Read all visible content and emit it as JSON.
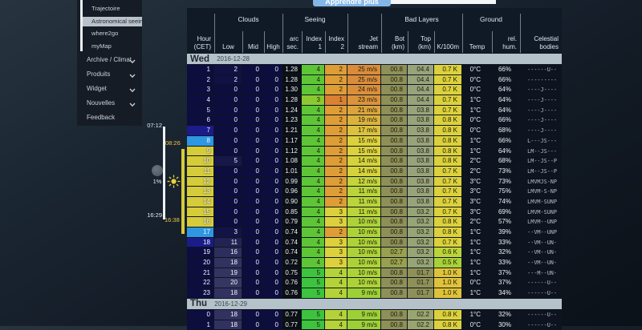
{
  "sidebar": {
    "submenu_items": [
      {
        "label": "Trajectoire",
        "active": false
      },
      {
        "label": "Astronomical seeing",
        "active": true
      },
      {
        "label": "where2go",
        "active": false
      },
      {
        "label": "myMap",
        "active": false
      }
    ],
    "menu_items": [
      {
        "label": "Archive / Climat",
        "chevron": true
      },
      {
        "label": "Produits",
        "chevron": true
      },
      {
        "label": "Widget",
        "chevron": true
      },
      {
        "label": "Nouvelles",
        "chevron": true
      },
      {
        "label": "Feedback",
        "chevron": false
      }
    ]
  },
  "timeline": {
    "moonrise": "07:12",
    "sunrise": "08:26",
    "moonset": "16:29",
    "sunset": "16:38",
    "moon_illumination": "1%"
  },
  "learn_more": "Apprendre plus",
  "table": {
    "column_groups": [
      {
        "label": "Clouds",
        "from": 1,
        "to": 3
      },
      {
        "label": "Seeing",
        "from": 4,
        "to": 6
      },
      {
        "label": "Bad Layers",
        "from": 8,
        "to": 10
      },
      {
        "label": "Ground",
        "from": 11,
        "to": 12
      }
    ],
    "columns": [
      {
        "lines": [
          "Hour",
          "(CET)"
        ]
      },
      {
        "lines": [
          "Low"
        ]
      },
      {
        "lines": [
          "Mid"
        ]
      },
      {
        "lines": [
          "High"
        ]
      },
      {
        "lines": [
          "arc",
          "sec."
        ]
      },
      {
        "lines": [
          "Index",
          "1"
        ]
      },
      {
        "lines": [
          "Index",
          "2"
        ]
      },
      {
        "lines": [
          "Jet",
          "stream"
        ]
      },
      {
        "lines": [
          "Bot",
          "(km)"
        ]
      },
      {
        "lines": [
          "Top",
          "(km)"
        ]
      },
      {
        "lines": [
          "K/100m"
        ]
      },
      {
        "lines": [
          "Temp"
        ]
      },
      {
        "lines": [
          "rel.",
          "hum."
        ]
      },
      {
        "lines": [
          "Celestial",
          "bodies"
        ]
      }
    ],
    "days": [
      {
        "name": "Wed",
        "date": "2016-12-28",
        "rows": [
          {
            "h": "1",
            "sky": "n",
            "c": [
              2,
              0,
              0
            ],
            "arc": "1.28",
            "i1": "4",
            "i2": "2",
            "jet": "25 m/s",
            "bot": "00.8",
            "top": "04.4",
            "k": "0.7 K",
            "t": "0°C",
            "rh": "66%",
            "cb": "------U--"
          },
          {
            "h": "2",
            "sky": "n",
            "c": [
              2,
              0,
              0
            ],
            "arc": "1.28",
            "i1": "4",
            "i2": "2",
            "jet": "25 m/s",
            "bot": "00.8",
            "top": "04.4",
            "k": "0.7 K",
            "t": "0°C",
            "rh": "66%",
            "cb": "---------"
          },
          {
            "h": "3",
            "sky": "n",
            "c": [
              0,
              0,
              0
            ],
            "arc": "1.30",
            "i1": "4",
            "i2": "2",
            "jet": "24 m/s",
            "bot": "00.8",
            "top": "04.4",
            "k": "0.7 K",
            "t": "0°C",
            "rh": "64%",
            "cb": "----J----"
          },
          {
            "h": "4",
            "sky": "n",
            "c": [
              0,
              0,
              0
            ],
            "arc": "1.28",
            "i1": "3",
            "i2": "1",
            "jet": "23 m/s",
            "bot": "00.8",
            "top": "04.4",
            "k": "0.7 K",
            "t": "1°C",
            "rh": "64%",
            "cb": "----J----"
          },
          {
            "h": "5",
            "sky": "n",
            "c": [
              0,
              0,
              0
            ],
            "arc": "1.24",
            "i1": "4",
            "i2": "2",
            "jet": "21 m/s",
            "bot": "00.8",
            "top": "03.8",
            "k": "0.7 K",
            "t": "1°C",
            "rh": "64%",
            "cb": "----J----"
          },
          {
            "h": "6",
            "sky": "n",
            "c": [
              0,
              0,
              0
            ],
            "arc": "1.23",
            "i1": "4",
            "i2": "2",
            "jet": "19 m/s",
            "bot": "00.8",
            "top": "03.8",
            "k": "0.8 K",
            "t": "0°C",
            "rh": "66%",
            "cb": "----J----"
          },
          {
            "h": "7",
            "sky": "t",
            "c": [
              0,
              0,
              0
            ],
            "arc": "1.21",
            "i1": "4",
            "i2": "2",
            "jet": "17 m/s",
            "bot": "00.8",
            "top": "03.8",
            "k": "0.8 K",
            "t": "0°C",
            "rh": "68%",
            "cb": "----J----"
          },
          {
            "h": "8",
            "sky": "s",
            "c": [
              0,
              0,
              0
            ],
            "arc": "1.17",
            "i1": "4",
            "i2": "2",
            "jet": "15 m/s",
            "bot": "00.8",
            "top": "03.8",
            "k": "0.8 K",
            "t": "1°C",
            "rh": "66%",
            "cb": "L---JS---"
          },
          {
            "h": "9",
            "sky": "d",
            "c": [
              0,
              0,
              0
            ],
            "arc": "1.12",
            "i1": "4",
            "i2": "2",
            "jet": "15 m/s",
            "bot": "00.8",
            "top": "03.8",
            "k": "0.8 K",
            "t": "1°C",
            "rh": "64%",
            "cb": "LM--JS---"
          },
          {
            "h": "10",
            "sky": "d",
            "c": [
              5,
              0,
              0
            ],
            "arc": "1.08",
            "i1": "4",
            "i2": "2",
            "jet": "14 m/s",
            "bot": "00.8",
            "top": "03.8",
            "k": "0.8 K",
            "t": "2°C",
            "rh": "68%",
            "cb": "LM--JS--P"
          },
          {
            "h": "11",
            "sky": "d",
            "c": [
              0,
              0,
              0
            ],
            "arc": "1.01",
            "i1": "4",
            "i2": "2",
            "jet": "14 m/s",
            "bot": "00.8",
            "top": "03.8",
            "k": "0.7 K",
            "t": "2°C",
            "rh": "73%",
            "cb": "LM--JS--P"
          },
          {
            "h": "12",
            "sky": "d",
            "c": [
              0,
              0,
              0
            ],
            "arc": "0.99",
            "i1": "4",
            "i2": "2",
            "jet": "12 m/s",
            "bot": "00.8",
            "top": "03.8",
            "k": "0.7 K",
            "t": "3°C",
            "rh": "73%",
            "cb": "LMVMJS-NP"
          },
          {
            "h": "13",
            "sky": "d",
            "c": [
              0,
              0,
              0
            ],
            "arc": "0.96",
            "i1": "4",
            "i2": "2",
            "jet": "11 m/s",
            "bot": "00.8",
            "top": "03.8",
            "k": "0.7 K",
            "t": "3°C",
            "rh": "75%",
            "cb": "LMVM-S-NP"
          },
          {
            "h": "14",
            "sky": "d",
            "c": [
              0,
              0,
              0
            ],
            "arc": "0.90",
            "i1": "4",
            "i2": "2",
            "jet": "11 m/s",
            "bot": "00.8",
            "top": "03.8",
            "k": "0.7 K",
            "t": "3°C",
            "rh": "74%",
            "cb": "LMVM-SUNP"
          },
          {
            "h": "15",
            "sky": "d",
            "c": [
              0,
              0,
              0
            ],
            "arc": "0.85",
            "i1": "4",
            "i2": "3",
            "jet": "11 m/s",
            "bot": "00.8",
            "top": "03.2",
            "k": "0.7 K",
            "t": "3°C",
            "rh": "69%",
            "cb": "LMVM-SUNP"
          },
          {
            "h": "16",
            "sky": "d",
            "c": [
              0,
              0,
              0
            ],
            "arc": "0.79",
            "i1": "4",
            "i2": "3",
            "jet": "10 m/s",
            "bot": "00.8",
            "top": "03.2",
            "k": "0.8 K",
            "t": "2°C",
            "rh": "57%",
            "cb": "LMVM--UNP"
          },
          {
            "h": "17",
            "sky": "s",
            "c": [
              3,
              0,
              0
            ],
            "arc": "0.74",
            "i1": "4",
            "i2": "2",
            "jet": "10 m/s",
            "bot": "00.8",
            "top": "03.2",
            "k": "0.8 K",
            "t": "1°C",
            "rh": "39%",
            "cb": "--VM--UNP"
          },
          {
            "h": "18",
            "sky": "t",
            "c": [
              11,
              0,
              0
            ],
            "arc": "0.74",
            "i1": "4",
            "i2": "3",
            "jet": "10 m/s",
            "bot": "00.8",
            "top": "03.2",
            "k": "0.7 K",
            "t": "1°C",
            "rh": "33%",
            "cb": "--VM--UN-"
          },
          {
            "h": "19",
            "sky": "n",
            "c": [
              16,
              0,
              0
            ],
            "arc": "0.74",
            "i1": "4",
            "i2": "3",
            "jet": "10 m/s",
            "bot": "02.7",
            "top": "03.2",
            "k": "0.6 K",
            "t": "1°C",
            "rh": "32%",
            "cb": "--VM--UN-"
          },
          {
            "h": "20",
            "sky": "n",
            "c": [
              18,
              0,
              0
            ],
            "arc": "0.72",
            "i1": "4",
            "i2": "3",
            "jet": "10 m/s",
            "bot": "02.7",
            "top": "03.2",
            "k": "0.5 K",
            "t": "1°C",
            "rh": "33%",
            "cb": "--VM--UN-"
          },
          {
            "h": "21",
            "sky": "n",
            "c": [
              19,
              0,
              0
            ],
            "arc": "0.75",
            "i1": "5",
            "i2": "4",
            "jet": "10 m/s",
            "bot": "00.8",
            "top": "01.7",
            "k": "1.0 K",
            "t": "1°C",
            "rh": "37%",
            "cb": "---M--UN-"
          },
          {
            "h": "22",
            "sky": "n",
            "c": [
              20,
              0,
              0
            ],
            "arc": "0.76",
            "i1": "5",
            "i2": "4",
            "jet": "10 m/s",
            "bot": "00.8",
            "top": "01.7",
            "k": "1.0 K",
            "t": "0°C",
            "rh": "37%",
            "cb": "------U--"
          },
          {
            "h": "23",
            "sky": "n",
            "c": [
              18,
              0,
              0
            ],
            "arc": "0.76",
            "i1": "5",
            "i2": "4",
            "jet": "9 m/s",
            "bot": "00.8",
            "top": "01.7",
            "k": "1.0 K",
            "t": "1°C",
            "rh": "34%",
            "cb": "------U--"
          }
        ]
      },
      {
        "name": "Thu",
        "date": "2016-12-29",
        "rows": [
          {
            "h": "0",
            "sky": "n",
            "c": [
              18,
              0,
              0
            ],
            "arc": "0.77",
            "i1": "5",
            "i2": "4",
            "jet": "9 m/s",
            "bot": "00.8",
            "top": "02.2",
            "k": "0.8 K",
            "t": "1°C",
            "rh": "32%",
            "cb": "------U--"
          },
          {
            "h": "1",
            "sky": "n",
            "c": [
              18,
              0,
              0
            ],
            "arc": "0.77",
            "i1": "5",
            "i2": "4",
            "jet": "9 m/s",
            "bot": "00.8",
            "top": "02.2",
            "k": "0.8 K",
            "t": "0°C",
            "rh": "30%",
            "cb": "------U--"
          }
        ]
      }
    ]
  },
  "colors": {
    "accent_button": "#84b7e8",
    "day_bar": "#b6c2ca",
    "sky": {
      "n": "#0d0d40",
      "t": "#1b1b8a",
      "s": "#2e96e2",
      "d": "#d6cc39"
    },
    "cloud_zero": "#0d0d40",
    "index1": {
      "3": "#8cc930",
      "4": "#5ec636",
      "5": "#3ec33e"
    },
    "index2": {
      "1": "#dc8033",
      "2": "#df9d36",
      "3": "#dcd13c",
      "4": "#b4d338"
    },
    "jet": {
      "25 m/s": "#db8c3b",
      "24 m/s": "#db8f3b",
      "23 m/s": "#db943c",
      "21 m/s": "#dba43d",
      "19 m/s": "#dbb23d",
      "17 m/s": "#dbc13d",
      "15 m/s": "#dcd13c",
      "14 m/s": "#d5d23b",
      "12 m/s": "#c4d53a",
      "11 m/s": "#bad439",
      "10 m/s": "#add238",
      "9 m/s": "#9dd037"
    },
    "bot": {
      "00.8": "#8e9058",
      "02.7": "#99a04f"
    },
    "top": {
      "04.4": "#99a37b",
      "03.8": "#99a37b",
      "03.2": "#96a476",
      "02.2": "#9aa470",
      "01.7": "#8e9058"
    },
    "k": {
      "0.5 K": "#a8d137",
      "0.6 K": "#bcd439",
      "0.7 K": "#dcd13c",
      "0.8 K": "#dcd13c",
      "1.0 K": "#dfc23a"
    }
  }
}
